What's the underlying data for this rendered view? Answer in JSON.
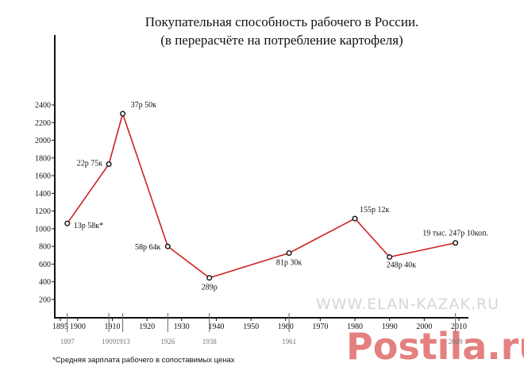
{
  "chart_data": {
    "type": "line",
    "title": "Покупательная способность рабочего в России.",
    "subtitle": "(в перерасчёте на потребление картофеля)",
    "xlabel": "",
    "ylabel": "",
    "xlim": [
      1895,
      2010
    ],
    "ylim": [
      0,
      2500
    ],
    "x_ticks": [
      1895,
      1900,
      1910,
      1920,
      1930,
      1940,
      1950,
      1960,
      1970,
      1980,
      1990,
      2000,
      2010
    ],
    "x_ticks_sub": [
      1897,
      1909,
      1913,
      1926,
      1938,
      1961,
      2009
    ],
    "y_ticks": [
      200,
      400,
      600,
      800,
      1000,
      1200,
      1400,
      1600,
      1800,
      2000,
      2200,
      2400
    ],
    "grid": false,
    "series": [
      {
        "color": "#cc2222",
        "points": [
          {
            "x": 1897,
            "y": 1060,
            "label": "13р 58к*"
          },
          {
            "x": 1909,
            "y": 1730,
            "label": "22р 75к"
          },
          {
            "x": 1913,
            "y": 2300,
            "label": "37р 50к"
          },
          {
            "x": 1926,
            "y": 800,
            "label": "58р 64к"
          },
          {
            "x": 1938,
            "y": 445,
            "label": "289р"
          },
          {
            "x": 1961,
            "y": 725,
            "label": "81р 30к"
          },
          {
            "x": 1980,
            "y": 1115,
            "label": "155р 12к"
          },
          {
            "x": 1990,
            "y": 680,
            "label": "248р 40к"
          },
          {
            "x": 2009,
            "y": 840,
            "label": "19 тыс. 247р 10коп."
          }
        ]
      }
    ]
  },
  "footnote": "*Средняя зарплата рабочего в сопоставимых ценах",
  "watermark": {
    "site": "WWW.ELAN-KAZAK.RU",
    "logo": "Postila.ru"
  }
}
